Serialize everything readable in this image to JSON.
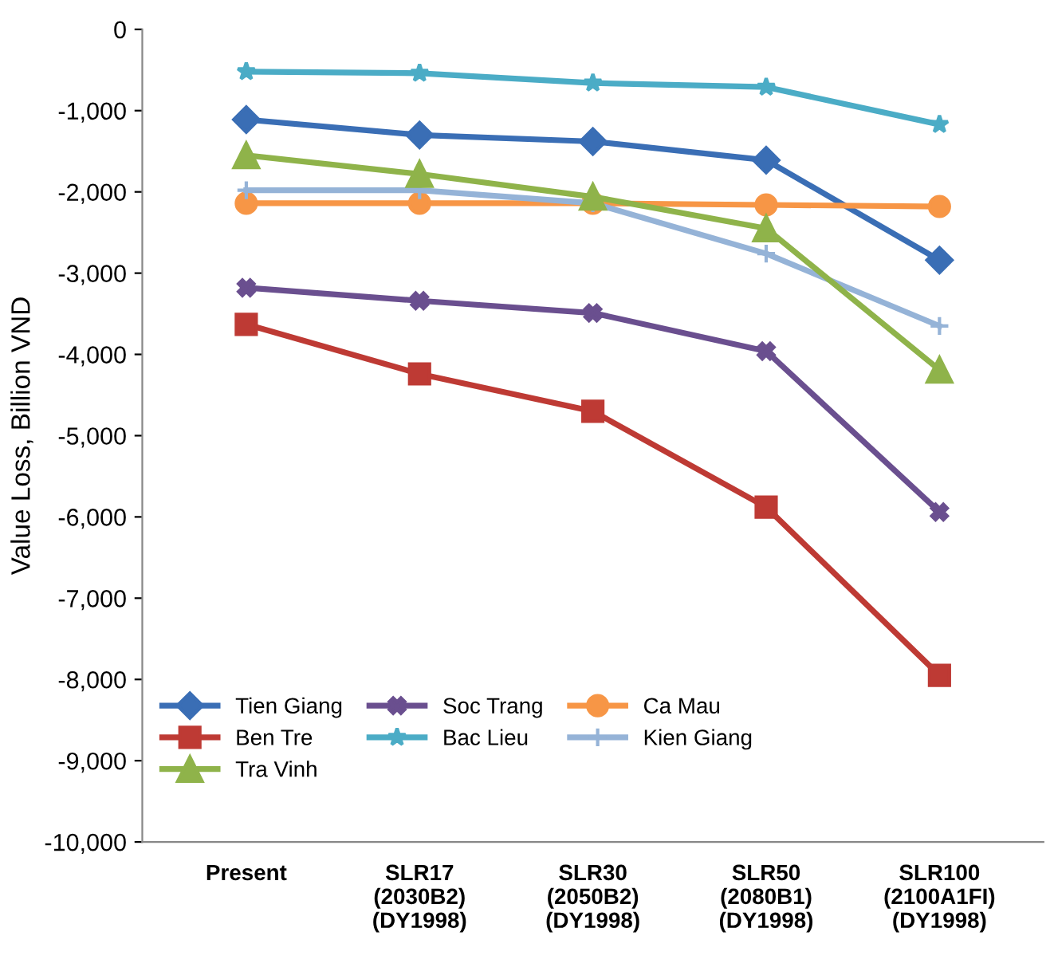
{
  "chart_data": {
    "type": "line",
    "ylabel": "Value Loss, Billion VND",
    "categories": [
      "Present",
      "SLR17\n(2030B2)\n(DY1998)",
      "SLR30\n(2050B2)\n(DY1998)",
      "SLR50\n(2080B1)\n(DY1998)",
      "SLR100\n(2100A1FI)\n(DY1998)"
    ],
    "series": [
      {
        "name": "Tien Giang",
        "color": "#3a6eb5",
        "marker": "diamond",
        "values": [
          -1110,
          -1300,
          -1380,
          -1610,
          -2840
        ]
      },
      {
        "name": "Ben Tre",
        "color": "#be3a34",
        "marker": "square",
        "values": [
          -3630,
          -4240,
          -4700,
          -5880,
          -7950
        ]
      },
      {
        "name": "Tra Vinh",
        "color": "#8fb34a",
        "marker": "triangle",
        "values": [
          -1550,
          -1780,
          -2060,
          -2450,
          -4190
        ]
      },
      {
        "name": "Soc Trang",
        "color": "#6a4f8f",
        "marker": "cross",
        "values": [
          -3180,
          -3340,
          -3490,
          -3960,
          -5940
        ]
      },
      {
        "name": "Bac Lieu",
        "color": "#4bacc6",
        "marker": "star",
        "values": [
          -520,
          -540,
          -660,
          -710,
          -1170
        ]
      },
      {
        "name": "Ca Mau",
        "color": "#f79646",
        "marker": "circle",
        "values": [
          -2140,
          -2140,
          -2140,
          -2160,
          -2180
        ]
      },
      {
        "name": "Kien Giang",
        "color": "#95b3d7",
        "marker": "plus",
        "values": [
          -1980,
          -1980,
          -2140,
          -2760,
          -3650
        ]
      }
    ],
    "ylim": [
      -10000,
      0
    ],
    "yticks": [
      {
        "value": -10000,
        "label": "-10,000"
      },
      {
        "value": -9000,
        "label": "-9,000"
      },
      {
        "value": -8000,
        "label": "-8,000"
      },
      {
        "value": -7000,
        "label": "-7,000"
      },
      {
        "value": -6000,
        "label": "-6,000"
      },
      {
        "value": -5000,
        "label": "-5,000"
      },
      {
        "value": -4000,
        "label": "-4,000"
      },
      {
        "value": -3000,
        "label": "-3,000"
      },
      {
        "value": -2000,
        "label": "-2,000"
      },
      {
        "value": -1000,
        "label": "-1,000"
      },
      0
    ],
    "grid": false,
    "legend": "bottom left"
  }
}
